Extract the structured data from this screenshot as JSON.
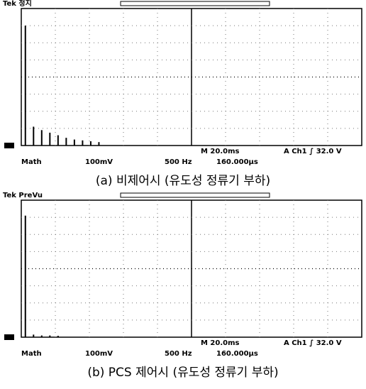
{
  "chart_data": [
    {
      "type": "bar",
      "title": "(a) 비제어시 (유도성 정류기 부하)",
      "scope_label": "Tek 정지",
      "timebase": "M 20.0ms",
      "trigger": "A Ch1 ∫ 32.0 V",
      "math": "Math",
      "scale": "100mV",
      "span": "500 Hz",
      "center": "160.000μs",
      "x": [
        60,
        180,
        300,
        420,
        540,
        660,
        780,
        900,
        1020,
        1140
      ],
      "values": [
        7.0,
        1.1,
        0.9,
        0.75,
        0.6,
        0.45,
        0.35,
        0.3,
        0.25,
        0.2
      ],
      "xlim": [
        0,
        5000
      ],
      "ylim": [
        0,
        8
      ],
      "color": "#000000",
      "grid": true
    },
    {
      "type": "bar",
      "title": "(b) PCS 제어시 (유도성 정류기 부하)",
      "scope_label": "Tek PreVu",
      "timebase": "M 20.0ms",
      "trigger": "A Ch1 ∫ 32.0 V",
      "math": "Math",
      "scale": "100mV",
      "span": "500 Hz",
      "center": "160.000μs",
      "x": [
        60,
        180,
        300,
        420,
        540
      ],
      "values": [
        7.1,
        0.15,
        0.1,
        0.1,
        0.08
      ],
      "xlim": [
        0,
        5000
      ],
      "ylim": [
        0,
        8
      ],
      "color": "#000000",
      "grid": true
    }
  ]
}
